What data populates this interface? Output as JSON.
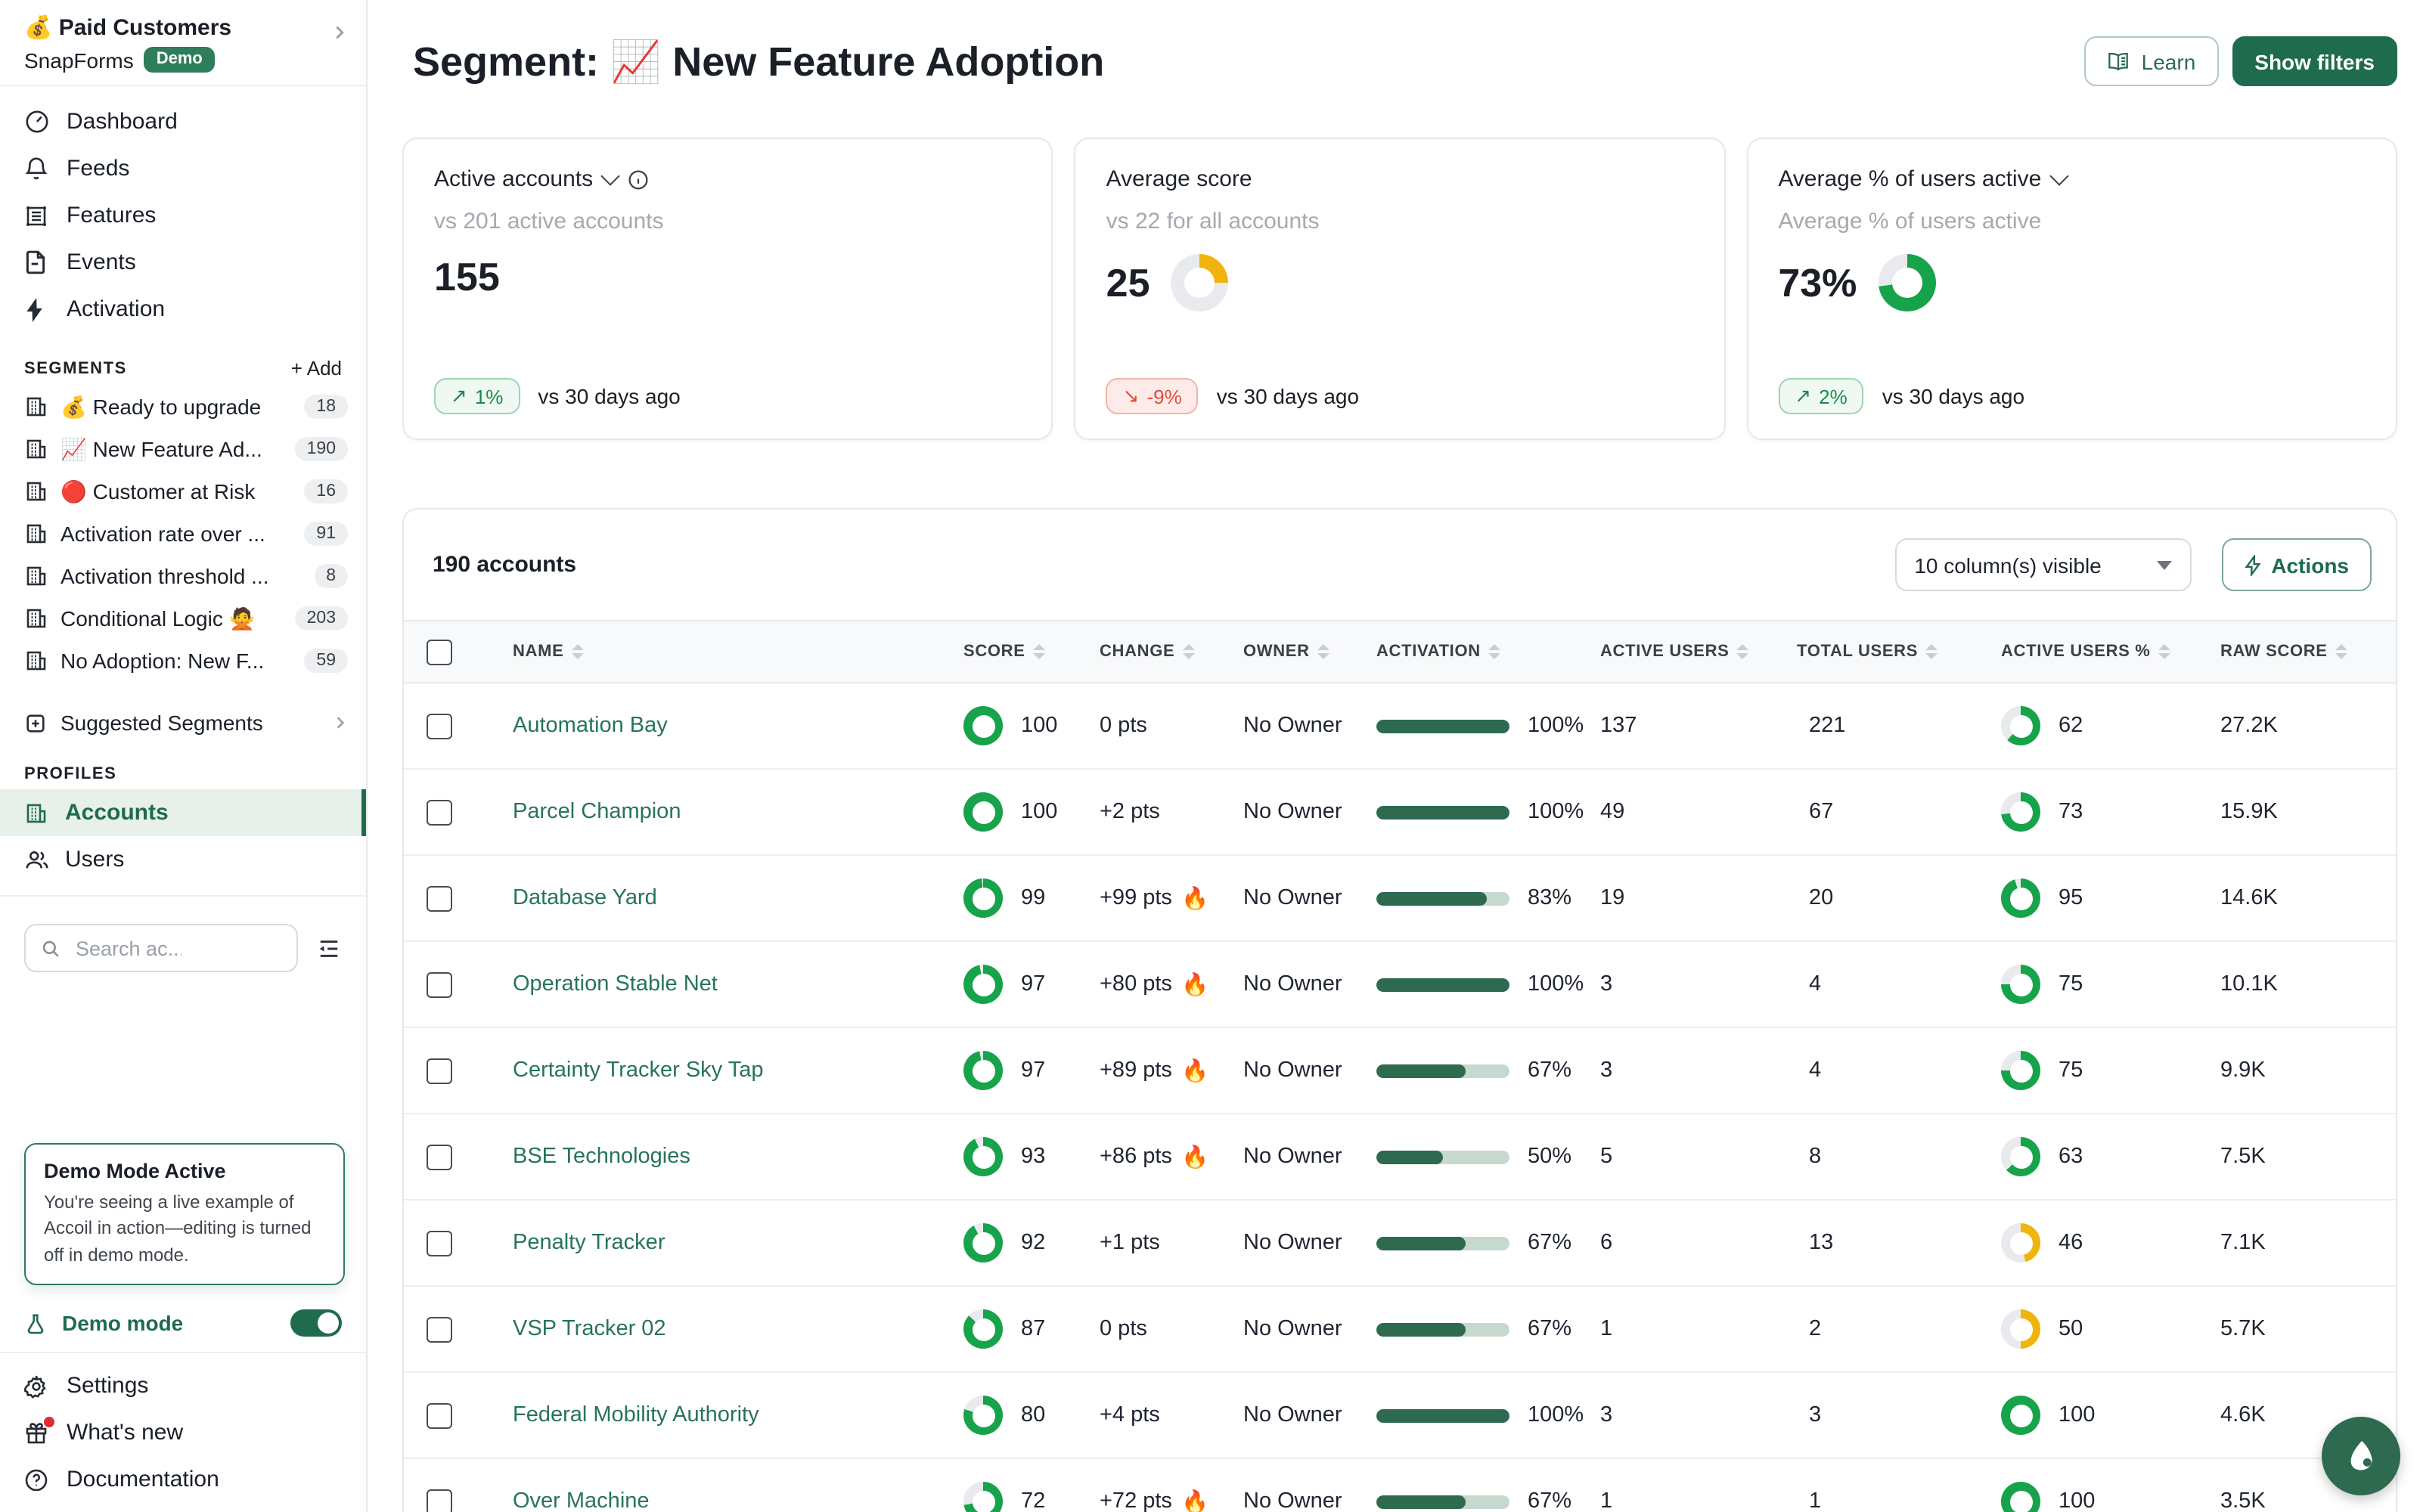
{
  "colors": {
    "accent_dark_green": "#1E6B4D",
    "ring_green": "#17A34A",
    "ring_yellow": "#F0B40C",
    "bar_fill": "#2D6A4F",
    "pill_green_text": "#1B8A4B",
    "pill_red_text": "#DE4E3C",
    "link_green": "#27745A"
  },
  "sidebar": {
    "workspace": {
      "name": "💰 Paid Customers",
      "product": "SnapForms",
      "badge": "Demo"
    },
    "nav": [
      {
        "icon": "gauge",
        "label": "Dashboard"
      },
      {
        "icon": "bell",
        "label": "Feeds"
      },
      {
        "icon": "grid",
        "label": "Features"
      },
      {
        "icon": "doc",
        "label": "Events"
      },
      {
        "icon": "bolt",
        "label": "Activation"
      }
    ],
    "segments": {
      "title": "SEGMENTS",
      "add_label": "+ Add",
      "items": [
        {
          "label": "💰 Ready to upgrade",
          "count": "18"
        },
        {
          "label": "📈 New Feature Ad...",
          "count": "190"
        },
        {
          "label": "🔴 Customer at Risk",
          "count": "16"
        },
        {
          "label": "Activation rate over ...",
          "count": "91"
        },
        {
          "label": "Activation threshold ...",
          "count": "8"
        },
        {
          "label": "Conditional Logic 🙅",
          "count": "203"
        },
        {
          "label": "No Adoption: New F...",
          "count": "59"
        }
      ],
      "suggested_label": "Suggested Segments"
    },
    "profiles": {
      "title": "PROFILES",
      "items": [
        {
          "icon": "building",
          "label": "Accounts",
          "active": true
        },
        {
          "icon": "users",
          "label": "Users",
          "active": false
        }
      ]
    },
    "search": {
      "placeholder": "Search ac..."
    },
    "demo_box": {
      "title": "Demo Mode Active",
      "body": "You're seeing a live example of Accoil in action—editing is turned off in demo mode."
    },
    "demo_mode": {
      "label": "Demo mode",
      "enabled": true
    },
    "footer": [
      {
        "icon": "gear",
        "label": "Settings"
      },
      {
        "icon": "gift",
        "label": "What's new",
        "dot": true
      },
      {
        "icon": "help",
        "label": "Documentation"
      }
    ]
  },
  "header": {
    "title": "Segment: 📈 New Feature Adoption",
    "learn_label": "Learn",
    "show_filters_label": "Show filters"
  },
  "cards": [
    {
      "label": "Active accounts",
      "has_dropdown": true,
      "has_info": true,
      "sub": "vs 201 active accounts",
      "value": "155",
      "delta_arrow": "↗",
      "delta": "1%",
      "delta_dir": "up",
      "period": "vs 30 days ago"
    },
    {
      "label": "Average score",
      "has_dropdown": false,
      "has_info": false,
      "sub": "vs 22 for all accounts",
      "value": "25",
      "donut": {
        "pct": 25,
        "color": "#F0B40C"
      },
      "delta_arrow": "↘",
      "delta": "-9%",
      "delta_dir": "down",
      "period": "vs 30 days ago"
    },
    {
      "label": "Average % of users active",
      "has_dropdown": true,
      "has_info": false,
      "sub": "Average % of users active",
      "value": "73%",
      "donut": {
        "pct": 73,
        "color": "#17A34A"
      },
      "delta_arrow": "↗",
      "delta": "2%",
      "delta_dir": "up",
      "period": "vs 30 days ago"
    }
  ],
  "table": {
    "count_label": "190 accounts",
    "columns_visible_label": "10 column(s) visible",
    "actions_label": "Actions",
    "fire_emoji": "🔥",
    "columns": [
      "NAME",
      "SCORE",
      "CHANGE",
      "OWNER",
      "ACTIVATION",
      "ACTIVE USERS",
      "TOTAL USERS",
      "ACTIVE USERS %",
      "RAW SCORE"
    ],
    "rows": [
      {
        "name": "Automation Bay",
        "score": 100,
        "change": "0 pts",
        "fire": false,
        "owner": "No Owner",
        "activation": 100,
        "active_users": 137,
        "total_users": 221,
        "active_pct": 62,
        "raw_score": "27.2K"
      },
      {
        "name": "Parcel Champion",
        "score": 100,
        "change": "+2 pts",
        "fire": false,
        "owner": "No Owner",
        "activation": 100,
        "active_users": 49,
        "total_users": 67,
        "active_pct": 73,
        "raw_score": "15.9K"
      },
      {
        "name": "Database Yard",
        "score": 99,
        "change": "+99 pts",
        "fire": true,
        "owner": "No Owner",
        "activation": 83,
        "active_users": 19,
        "total_users": 20,
        "active_pct": 95,
        "raw_score": "14.6K"
      },
      {
        "name": "Operation Stable Net",
        "score": 97,
        "change": "+80 pts",
        "fire": true,
        "owner": "No Owner",
        "activation": 100,
        "active_users": 3,
        "total_users": 4,
        "active_pct": 75,
        "raw_score": "10.1K"
      },
      {
        "name": "Certainty Tracker Sky Tap",
        "score": 97,
        "change": "+89 pts",
        "fire": true,
        "owner": "No Owner",
        "activation": 67,
        "active_users": 3,
        "total_users": 4,
        "active_pct": 75,
        "raw_score": "9.9K"
      },
      {
        "name": "BSE Technologies",
        "score": 93,
        "change": "+86 pts",
        "fire": true,
        "owner": "No Owner",
        "activation": 50,
        "active_users": 5,
        "total_users": 8,
        "active_pct": 63,
        "raw_score": "7.5K"
      },
      {
        "name": "Penalty Tracker",
        "score": 92,
        "change": "+1 pts",
        "fire": false,
        "owner": "No Owner",
        "activation": 67,
        "active_users": 6,
        "total_users": 13,
        "active_pct": 46,
        "raw_score": "7.1K"
      },
      {
        "name": "VSP Tracker 02",
        "score": 87,
        "change": "0 pts",
        "fire": false,
        "owner": "No Owner",
        "activation": 67,
        "active_users": 1,
        "total_users": 2,
        "active_pct": 50,
        "raw_score": "5.7K"
      },
      {
        "name": "Federal Mobility Authority",
        "score": 80,
        "change": "+4 pts",
        "fire": false,
        "owner": "No Owner",
        "activation": 100,
        "active_users": 3,
        "total_users": 3,
        "active_pct": 100,
        "raw_score": "4.6K"
      },
      {
        "name": "Over Machine",
        "score": 72,
        "change": "+72 pts",
        "fire": true,
        "owner": "No Owner",
        "activation": 67,
        "active_users": 1,
        "total_users": 1,
        "active_pct": 100,
        "raw_score": "3.5K"
      }
    ]
  }
}
